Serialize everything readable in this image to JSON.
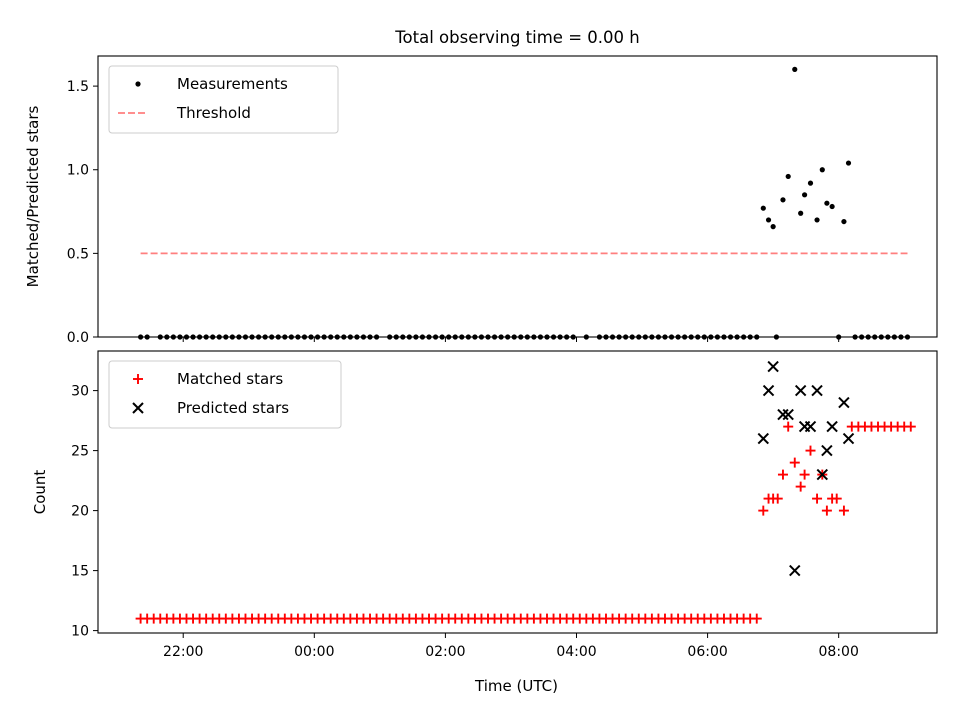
{
  "chart_data": [
    {
      "type": "scatter",
      "title": "Total observing time = 0.00 h",
      "ylabel": "Matched/Predicted stars",
      "xlabel": "",
      "xlim_hours": [
        20.7,
        33.5
      ],
      "ylim": [
        0,
        1.68
      ],
      "yticks": [
        0.0,
        0.5,
        1.0,
        1.5
      ],
      "ytick_labels": [
        "0.0",
        "0.5",
        "1.0",
        "1.5"
      ],
      "legend_position": "top-left",
      "series": [
        {
          "name": "Measurements",
          "marker": "dot",
          "color": "#000000",
          "points": [
            [
              21.35,
              0
            ],
            [
              21.45,
              0
            ],
            [
              21.65,
              0
            ],
            [
              21.75,
              0
            ],
            [
              21.85,
              0
            ],
            [
              21.95,
              0
            ],
            [
              22.05,
              0
            ],
            [
              22.15,
              0
            ],
            [
              22.25,
              0
            ],
            [
              22.35,
              0
            ],
            [
              22.45,
              0
            ],
            [
              22.55,
              0
            ],
            [
              22.65,
              0
            ],
            [
              22.75,
              0
            ],
            [
              22.85,
              0
            ],
            [
              22.95,
              0
            ],
            [
              23.05,
              0
            ],
            [
              23.15,
              0
            ],
            [
              23.25,
              0
            ],
            [
              23.35,
              0
            ],
            [
              23.45,
              0
            ],
            [
              23.55,
              0
            ],
            [
              23.65,
              0
            ],
            [
              23.75,
              0
            ],
            [
              23.85,
              0
            ],
            [
              23.95,
              0
            ],
            [
              24.05,
              0
            ],
            [
              24.15,
              0
            ],
            [
              24.25,
              0
            ],
            [
              24.35,
              0
            ],
            [
              24.45,
              0
            ],
            [
              24.55,
              0
            ],
            [
              24.65,
              0
            ],
            [
              24.75,
              0
            ],
            [
              24.85,
              0
            ],
            [
              24.95,
              0
            ],
            [
              25.15,
              0
            ],
            [
              25.25,
              0
            ],
            [
              25.35,
              0
            ],
            [
              25.45,
              0
            ],
            [
              25.55,
              0
            ],
            [
              25.65,
              0
            ],
            [
              25.75,
              0
            ],
            [
              25.85,
              0
            ],
            [
              25.95,
              0
            ],
            [
              26.05,
              0
            ],
            [
              26.15,
              0
            ],
            [
              26.25,
              0
            ],
            [
              26.35,
              0
            ],
            [
              26.45,
              0
            ],
            [
              26.55,
              0
            ],
            [
              26.65,
              0
            ],
            [
              26.75,
              0
            ],
            [
              26.85,
              0
            ],
            [
              26.95,
              0
            ],
            [
              27.05,
              0
            ],
            [
              27.15,
              0
            ],
            [
              27.25,
              0
            ],
            [
              27.35,
              0
            ],
            [
              27.45,
              0
            ],
            [
              27.55,
              0
            ],
            [
              27.65,
              0
            ],
            [
              27.75,
              0
            ],
            [
              27.85,
              0
            ],
            [
              27.95,
              0
            ],
            [
              28.15,
              0
            ],
            [
              28.35,
              0
            ],
            [
              28.45,
              0
            ],
            [
              28.55,
              0
            ],
            [
              28.65,
              0
            ],
            [
              28.75,
              0
            ],
            [
              28.85,
              0
            ],
            [
              28.95,
              0
            ],
            [
              29.05,
              0
            ],
            [
              29.15,
              0
            ],
            [
              29.25,
              0
            ],
            [
              29.35,
              0
            ],
            [
              29.45,
              0
            ],
            [
              29.55,
              0
            ],
            [
              29.65,
              0
            ],
            [
              29.75,
              0
            ],
            [
              29.85,
              0
            ],
            [
              29.95,
              0
            ],
            [
              30.05,
              0
            ],
            [
              30.15,
              0
            ],
            [
              30.25,
              0
            ],
            [
              30.35,
              0
            ],
            [
              30.45,
              0
            ],
            [
              30.55,
              0
            ],
            [
              30.65,
              0
            ],
            [
              30.75,
              0
            ],
            [
              31.05,
              0
            ],
            [
              32.0,
              0
            ],
            [
              32.25,
              0
            ],
            [
              32.35,
              0
            ],
            [
              32.45,
              0
            ],
            [
              32.55,
              0
            ],
            [
              32.65,
              0
            ],
            [
              32.75,
              0
            ],
            [
              32.85,
              0
            ],
            [
              32.95,
              0
            ],
            [
              33.05,
              0
            ],
            [
              30.85,
              0.77
            ],
            [
              30.93,
              0.7
            ],
            [
              31.0,
              0.66
            ],
            [
              31.15,
              0.82
            ],
            [
              31.23,
              0.96
            ],
            [
              31.42,
              0.74
            ],
            [
              31.48,
              0.85
            ],
            [
              31.57,
              0.92
            ],
            [
              31.67,
              0.7
            ],
            [
              31.75,
              1.0
            ],
            [
              31.82,
              0.8
            ],
            [
              31.9,
              0.78
            ],
            [
              32.08,
              0.69
            ],
            [
              32.15,
              1.04
            ],
            [
              31.33,
              1.6
            ]
          ]
        },
        {
          "name": "Threshold",
          "marker": "dashed-line",
          "color": "#ff7f7f",
          "x_range_hours": [
            21.35,
            33.05
          ],
          "y": 0.5
        }
      ]
    },
    {
      "type": "scatter",
      "title": "",
      "ylabel": "Count",
      "xlabel": "Time (UTC)",
      "xlim_hours": [
        20.7,
        33.5
      ],
      "ylim": [
        9.8,
        33.3
      ],
      "yticks": [
        10,
        15,
        20,
        25,
        30
      ],
      "ytick_labels": [
        "10",
        "15",
        "20",
        "25",
        "30"
      ],
      "xticks_hours": [
        22,
        24,
        26,
        28,
        30,
        32
      ],
      "xtick_labels": [
        "22:00",
        "00:00",
        "02:00",
        "04:00",
        "06:00",
        "08:00"
      ],
      "legend_position": "top-left",
      "series": [
        {
          "name": "Matched stars",
          "marker": "plus",
          "color": "#ff0000",
          "flat_value": 11,
          "flat_x_start": 21.35,
          "flat_x_end": 30.75,
          "flat_x_step": 0.1,
          "points": [
            [
              30.85,
              20
            ],
            [
              30.93,
              21
            ],
            [
              31.0,
              21
            ],
            [
              31.07,
              21
            ],
            [
              31.15,
              23
            ],
            [
              31.23,
              27
            ],
            [
              31.33,
              24
            ],
            [
              31.42,
              22
            ],
            [
              31.48,
              23
            ],
            [
              31.57,
              25
            ],
            [
              31.67,
              21
            ],
            [
              31.75,
              23
            ],
            [
              31.82,
              20
            ],
            [
              31.9,
              21
            ],
            [
              31.97,
              21
            ],
            [
              32.08,
              20
            ],
            [
              32.2,
              27
            ],
            [
              32.3,
              27
            ],
            [
              32.4,
              27
            ],
            [
              32.5,
              27
            ],
            [
              32.6,
              27
            ],
            [
              32.7,
              27
            ],
            [
              32.8,
              27
            ],
            [
              32.9,
              27
            ],
            [
              33.0,
              27
            ],
            [
              33.1,
              27
            ]
          ]
        },
        {
          "name": "Predicted stars",
          "marker": "x",
          "color": "#000000",
          "points": [
            [
              30.85,
              26
            ],
            [
              30.93,
              30
            ],
            [
              31.0,
              32
            ],
            [
              31.15,
              28
            ],
            [
              31.23,
              28
            ],
            [
              31.33,
              15
            ],
            [
              31.42,
              30
            ],
            [
              31.48,
              27
            ],
            [
              31.57,
              27
            ],
            [
              31.67,
              30
            ],
            [
              31.75,
              23
            ],
            [
              31.82,
              25
            ],
            [
              31.9,
              27
            ],
            [
              32.08,
              29
            ],
            [
              32.15,
              26
            ]
          ]
        }
      ]
    }
  ]
}
